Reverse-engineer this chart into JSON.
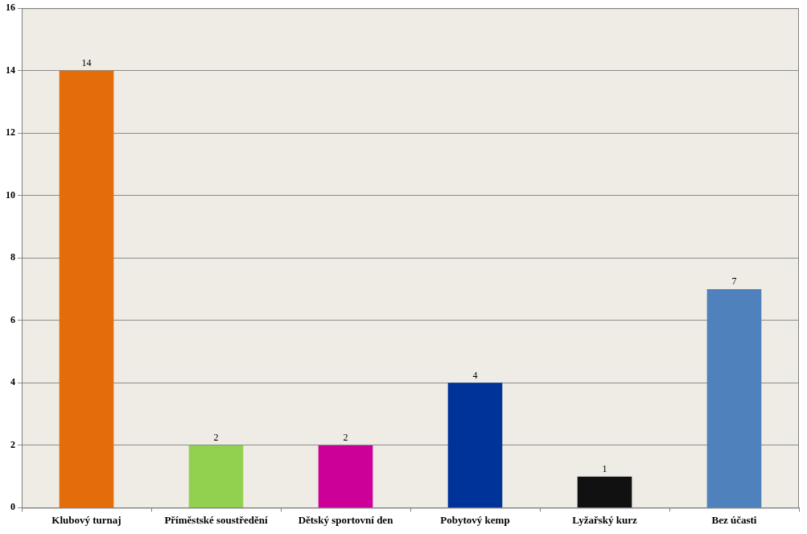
{
  "chart_data": {
    "type": "bar",
    "categories": [
      "Klubový turnaj",
      "Příměstské soustředění",
      "Dětský sportovní den",
      "Pobytový kemp",
      "Lyžařský kurz",
      "Bez účasti"
    ],
    "values": [
      14,
      2,
      2,
      4,
      1,
      7
    ],
    "colors": [
      "#e46c0a",
      "#92d050",
      "#cc0099",
      "#003399",
      "#111111",
      "#4f81bd"
    ],
    "ylim": [
      0,
      16
    ],
    "yticks": [
      0,
      2,
      4,
      6,
      8,
      10,
      12,
      14,
      16
    ],
    "grid": "y",
    "data_labels": true
  }
}
